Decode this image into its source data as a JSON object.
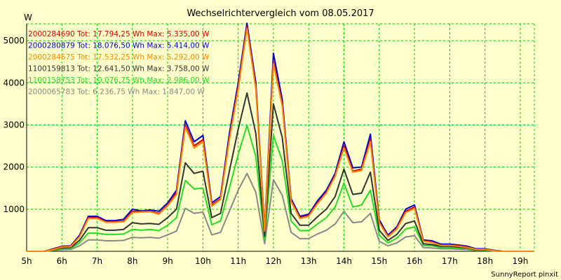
{
  "chart_data": {
    "type": "line",
    "title": "Wechselrichtervergleich vom 08.05.2017",
    "ylabel": "W",
    "xlabel": "",
    "ylim": [
      0,
      5400
    ],
    "xlim": [
      5,
      19.4
    ],
    "grid": true,
    "x_ticks": [
      "5h",
      "6h",
      "7h",
      "8h",
      "9h",
      "10h",
      "11h",
      "12h",
      "13h",
      "14h",
      "15h",
      "16h",
      "17h",
      "18h",
      "19h"
    ],
    "y_ticks": [
      1000,
      2000,
      3000,
      4000,
      5000
    ],
    "legend_position": "top-left",
    "footer": "SunnyReport pinxit",
    "x": [
      5.0,
      5.25,
      5.5,
      5.75,
      6.0,
      6.25,
      6.5,
      6.75,
      7.0,
      7.25,
      7.5,
      7.75,
      8.0,
      8.25,
      8.5,
      8.75,
      9.0,
      9.25,
      9.5,
      9.75,
      10.0,
      10.25,
      10.5,
      10.75,
      11.0,
      11.25,
      11.5,
      11.75,
      12.0,
      12.25,
      12.5,
      12.75,
      13.0,
      13.25,
      13.5,
      13.75,
      14.0,
      14.25,
      14.5,
      14.75,
      15.0,
      15.25,
      15.5,
      15.75,
      16.0,
      16.25,
      16.5,
      16.75,
      17.0,
      17.25,
      17.5,
      17.75,
      18.0,
      18.25,
      18.5,
      18.75,
      19.0,
      19.25,
      19.4
    ],
    "series": [
      {
        "name": "2000284690 Tot: 17.794,25 Wh Max: 5.335,00 W",
        "color": "#dd0000",
        "values": [
          0,
          0,
          0,
          50,
          110,
          120,
          350,
          800,
          800,
          700,
          700,
          720,
          950,
          950,
          950,
          900,
          1100,
          1400,
          3000,
          2500,
          2650,
          1100,
          1250,
          2700,
          3900,
          5335,
          3900,
          500,
          4500,
          3500,
          1200,
          800,
          850,
          1150,
          1400,
          1800,
          2500,
          1900,
          1950,
          2650,
          700,
          350,
          550,
          950,
          1050,
          250,
          220,
          150,
          150,
          130,
          100,
          50,
          50,
          20,
          0,
          0,
          0,
          0,
          0
        ]
      },
      {
        "name": "2000280879 Tot: 18.076,50 Wh Max: 5.414,00 W",
        "color": "#0000dd",
        "values": [
          0,
          0,
          0,
          60,
          120,
          130,
          380,
          830,
          830,
          730,
          730,
          760,
          1000,
          960,
          980,
          950,
          1150,
          1450,
          3100,
          2600,
          2750,
          1150,
          1300,
          2800,
          4000,
          5414,
          4000,
          540,
          4700,
          3600,
          1250,
          830,
          880,
          1200,
          1450,
          1850,
          2600,
          1980,
          2000,
          2780,
          750,
          380,
          580,
          1000,
          1100,
          270,
          250,
          170,
          170,
          150,
          120,
          60,
          60,
          25,
          0,
          0,
          0,
          0,
          0
        ]
      },
      {
        "name": "2000284675 Tot: 17.532,25 Wh Max: 5.292,00 W",
        "color": "#ff8800",
        "values": [
          0,
          0,
          0,
          40,
          100,
          110,
          340,
          780,
          780,
          690,
          690,
          700,
          920,
          930,
          940,
          880,
          1080,
          1350,
          2950,
          2450,
          2600,
          1070,
          1230,
          2650,
          3850,
          5292,
          3850,
          480,
          4450,
          3450,
          1180,
          780,
          830,
          1130,
          1380,
          1780,
          2450,
          1880,
          1920,
          2600,
          680,
          340,
          530,
          920,
          1020,
          240,
          210,
          140,
          140,
          120,
          90,
          45,
          45,
          15,
          0,
          0,
          0,
          0,
          0
        ]
      },
      {
        "name": "1100159813 Tot: 12.641,50 Wh Max: 3.758,00 W",
        "color": "#333333",
        "values": [
          0,
          0,
          0,
          40,
          80,
          90,
          260,
          560,
          560,
          500,
          500,
          520,
          680,
          650,
          660,
          640,
          800,
          1000,
          2100,
          1850,
          1900,
          800,
          900,
          1900,
          2900,
          3758,
          2800,
          360,
          3500,
          2700,
          900,
          620,
          620,
          820,
          1000,
          1300,
          1950,
          1350,
          1380,
          1880,
          500,
          260,
          400,
          660,
          720,
          180,
          160,
          120,
          120,
          100,
          80,
          40,
          40,
          15,
          0,
          0,
          0,
          0,
          0
        ]
      },
      {
        "name": "1100158753 Tot: 10.076,75 Wh Max: 2.986,00 W",
        "color": "#22dd22",
        "values": [
          0,
          0,
          0,
          30,
          60,
          70,
          200,
          430,
          430,
          400,
          400,
          410,
          520,
          500,
          520,
          490,
          620,
          800,
          1680,
          1480,
          1500,
          630,
          720,
          1500,
          2300,
          2986,
          2250,
          280,
          2750,
          2150,
          720,
          490,
          490,
          650,
          800,
          1050,
          1620,
          1050,
          1100,
          1450,
          380,
          200,
          310,
          530,
          580,
          140,
          130,
          90,
          90,
          80,
          60,
          30,
          30,
          10,
          0,
          0,
          0,
          0,
          0
        ]
      },
      {
        "name": "2000065783 Tot: 6.236,75 Wh Max: 1.847,00 W",
        "color": "#888888",
        "values": [
          0,
          0,
          0,
          20,
          40,
          45,
          130,
          270,
          270,
          250,
          250,
          260,
          330,
          320,
          330,
          310,
          390,
          480,
          1020,
          900,
          930,
          390,
          450,
          950,
          1450,
          1847,
          1400,
          180,
          1700,
          1330,
          450,
          300,
          300,
          410,
          500,
          650,
          950,
          680,
          700,
          900,
          240,
          130,
          200,
          340,
          370,
          90,
          80,
          60,
          60,
          50,
          40,
          20,
          20,
          8,
          0,
          0,
          0,
          0,
          0
        ]
      }
    ]
  }
}
